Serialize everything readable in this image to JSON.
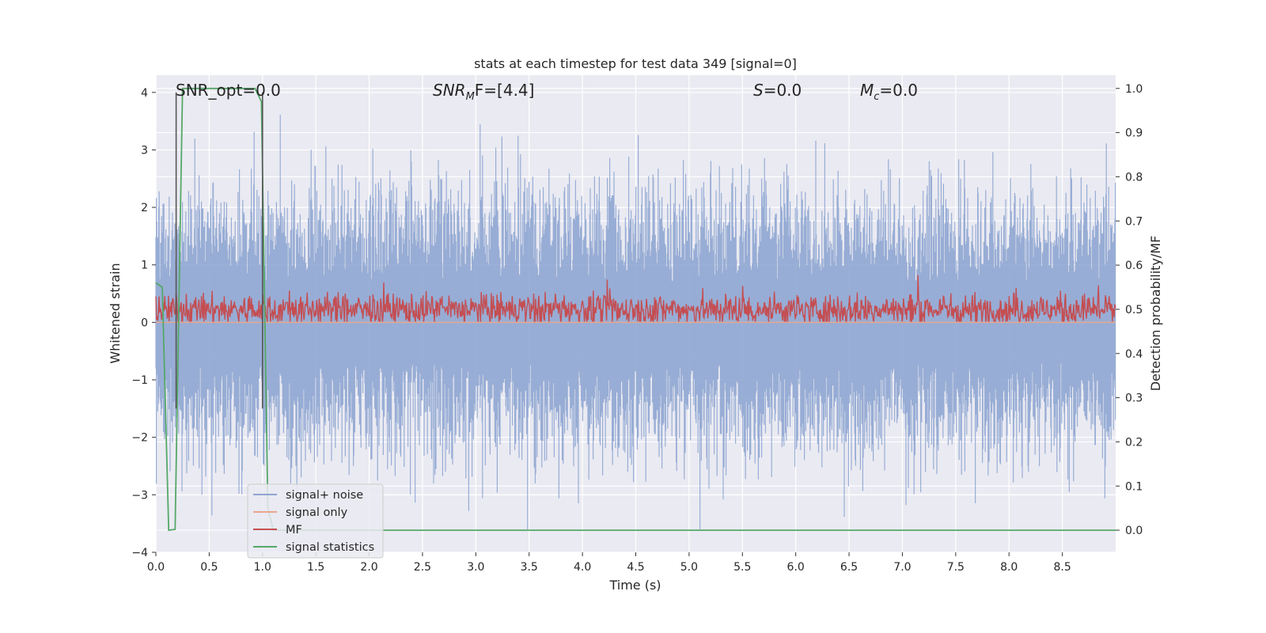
{
  "chart_data": {
    "type": "line",
    "title": "stats at each timestep for test data 349 [signal=0]",
    "xlabel": "Time (s)",
    "ylabel_left": "Whitened strain",
    "ylabel_right": "Detection probability/MF",
    "xlim": [
      0.0,
      9.0
    ],
    "ylim_left": [
      -4.0,
      4.3
    ],
    "ylim_right": [
      -0.05,
      1.03
    ],
    "x_ticks": [
      "0.0",
      "0.5",
      "1.0",
      "1.5",
      "2.0",
      "2.5",
      "3.0",
      "3.5",
      "4.0",
      "4.5",
      "5.0",
      "5.5",
      "6.0",
      "6.5",
      "7.0",
      "7.5",
      "8.0",
      "8.5"
    ],
    "y_ticks_left": [
      "4",
      "3",
      "2",
      "1",
      "0",
      "−1",
      "−2",
      "−3",
      "−4"
    ],
    "y_ticks_right": [
      "1.0",
      "0.9",
      "0.8",
      "0.7",
      "0.6",
      "0.5",
      "0.4",
      "0.3",
      "0.2",
      "0.1",
      "0.0"
    ],
    "grid": true,
    "legend_position": "lower-left",
    "annotations": [
      {
        "text": "SNR_opt=0.0",
        "x": 0.19,
        "y": 4.1
      },
      {
        "text_base": "SNR",
        "text_sub": "M",
        "text_rest": "F=[4.4]",
        "x": 2.6,
        "y": 4.1
      },
      {
        "text_base": "S",
        "text_sub": "",
        "text_rest": "=0.0",
        "x": 5.6,
        "y": 4.1
      },
      {
        "text_base": "M",
        "text_sub": "c",
        "text_rest": "=0.0",
        "x": 6.6,
        "y": 4.1
      }
    ],
    "vertical_markers": [
      0.19,
      1.0
    ],
    "vertical_marker_color": "#555555",
    "series": [
      {
        "name": "signal+ noise",
        "color": "#8fa6d1",
        "axis": "left",
        "style": "noise",
        "range": [
          -2.5,
          2.5
        ],
        "peak_max": 4.0,
        "peak_min": -3.6
      },
      {
        "name": "signal only",
        "color": "#e8a78c",
        "axis": "left",
        "values_constant": 0.0
      },
      {
        "name": "MF",
        "color": "#c44e52",
        "axis": "left",
        "style": "noise",
        "range": [
          0.0,
          0.8
        ]
      },
      {
        "name": "signal statistics",
        "color": "#55a868",
        "axis": "right",
        "x": [
          0.0,
          0.06,
          0.12,
          0.18,
          0.25,
          0.3,
          0.5,
          0.7,
          0.93,
          0.99,
          1.05,
          1.1,
          9.0
        ],
        "y": [
          0.56,
          0.55,
          0.0,
          0.002,
          1.0,
          1.0,
          1.0,
          1.0,
          1.0,
          0.97,
          0.05,
          0.0,
          0.0
        ]
      }
    ]
  }
}
